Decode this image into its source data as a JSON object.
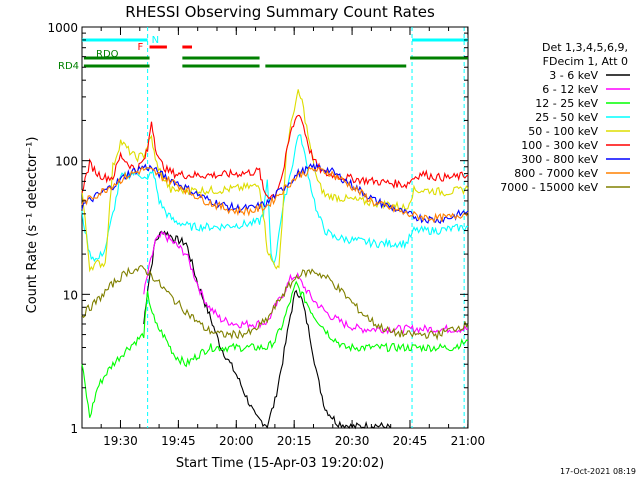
{
  "chart_data": {
    "type": "line",
    "title": "RHESSI Observing Summary Count Rates",
    "xlabel": "Start Time (15-Apr-03 19:20:02)",
    "ylabel": "Count Rate (s⁻¹ detector⁻¹)",
    "yscale": "log",
    "ylim": [
      1,
      1000
    ],
    "xlim_minutes": [
      0,
      100
    ],
    "x_tick_labels": [
      "19:30",
      "19:45",
      "20:00",
      "20:15",
      "20:30",
      "20:45",
      "21:00"
    ],
    "x_tick_minutes": [
      9.97,
      24.97,
      39.97,
      54.97,
      69.97,
      84.97,
      99.97
    ],
    "y_tick_labels": [
      "1",
      "10",
      "100",
      "1000"
    ],
    "y_tick_values": [
      1,
      10,
      100,
      1000
    ],
    "timestamp": "17-Oct-2021 08:19",
    "legend": {
      "header": [
        "Det 1,3,4,5,6,9,",
        "FDecim 1, Att 0"
      ],
      "position": "right"
    },
    "flag_bars": [
      {
        "name": "N",
        "color": "#00ffff",
        "segments": [
          [
            0,
            17
          ],
          [
            85.5,
            100
          ]
        ]
      },
      {
        "name": "F",
        "color": "#ff0000",
        "segments": [
          [
            17.5,
            22
          ],
          [
            26,
            28.5
          ]
        ]
      },
      {
        "name": "RDO",
        "color": "#008000",
        "segments": [
          [
            0.5,
            17.5
          ],
          [
            26,
            46
          ],
          [
            85,
            100
          ]
        ]
      },
      {
        "name": "RD4",
        "color": "#008000",
        "segments": [
          [
            0.5,
            17.5
          ],
          [
            26,
            46
          ],
          [
            47.5,
            84
          ]
        ]
      }
    ],
    "night_markers_minutes": [
      17,
      85.5,
      99
    ],
    "series": [
      {
        "name": "3 - 6 keV",
        "color": "#000000",
        "points": [
          [
            16,
            6
          ],
          [
            17,
            11
          ],
          [
            19,
            25
          ],
          [
            21,
            30
          ],
          [
            24,
            26
          ],
          [
            27,
            24
          ],
          [
            30,
            12
          ],
          [
            33,
            7
          ],
          [
            36,
            4
          ],
          [
            40,
            2.5
          ],
          [
            45,
            1.2
          ],
          [
            48,
            1.05
          ],
          [
            50,
            1.6
          ],
          [
            52,
            3.2
          ],
          [
            54,
            7
          ],
          [
            55.5,
            11
          ],
          [
            57,
            9
          ],
          [
            59,
            5
          ],
          [
            61,
            2.4
          ],
          [
            63,
            1.4
          ],
          [
            66,
            1.1
          ],
          [
            70,
            1.02
          ],
          [
            76,
            1.05
          ],
          [
            80,
            1.0
          ]
        ]
      },
      {
        "name": "6 - 12 keV",
        "color": "#ff00ff",
        "points": [
          [
            16,
            10
          ],
          [
            17,
            14
          ],
          [
            19,
            25
          ],
          [
            21,
            28
          ],
          [
            24,
            24
          ],
          [
            27,
            20
          ],
          [
            29,
            14
          ],
          [
            31,
            10
          ],
          [
            33,
            8
          ],
          [
            36,
            6.5
          ],
          [
            40,
            6
          ],
          [
            45,
            6
          ],
          [
            48,
            6.2
          ],
          [
            50,
            8
          ],
          [
            52,
            10
          ],
          [
            54,
            13
          ],
          [
            55.5,
            14
          ],
          [
            57,
            12
          ],
          [
            60,
            9
          ],
          [
            64,
            7
          ],
          [
            68,
            6
          ],
          [
            72,
            5.5
          ],
          [
            78,
            5.5
          ],
          [
            84,
            5.5
          ],
          [
            90,
            5.5
          ],
          [
            96,
            5.5
          ],
          [
            100,
            5.5
          ]
        ]
      },
      {
        "name": "12 - 25 keV",
        "color": "#00ff00",
        "points": [
          [
            0,
            3
          ],
          [
            2,
            1.2
          ],
          [
            4,
            2
          ],
          [
            6,
            2.5
          ],
          [
            8,
            3
          ],
          [
            12,
            4
          ],
          [
            16,
            5
          ],
          [
            17,
            10
          ],
          [
            19,
            6
          ],
          [
            21,
            5
          ],
          [
            24,
            3.5
          ],
          [
            27,
            3
          ],
          [
            30,
            3.5
          ],
          [
            33,
            4
          ],
          [
            36,
            4
          ],
          [
            40,
            4
          ],
          [
            44,
            4
          ],
          [
            48,
            4
          ],
          [
            50,
            4.5
          ],
          [
            52,
            6
          ],
          [
            54,
            9
          ],
          [
            55.5,
            12
          ],
          [
            57,
            10
          ],
          [
            60,
            7
          ],
          [
            64,
            5
          ],
          [
            68,
            4
          ],
          [
            72,
            4
          ],
          [
            76,
            4
          ],
          [
            80,
            4
          ],
          [
            84,
            4
          ],
          [
            88,
            4
          ],
          [
            92,
            4
          ],
          [
            96,
            4
          ],
          [
            100,
            4.5
          ]
        ]
      },
      {
        "name": "25 - 50 keV",
        "color": "#00ffff",
        "points": [
          [
            0,
            40
          ],
          [
            2,
            20
          ],
          [
            4,
            18
          ],
          [
            6,
            22
          ],
          [
            8,
            40
          ],
          [
            10,
            75
          ],
          [
            13,
            80
          ],
          [
            15,
            80
          ],
          [
            17,
            70
          ],
          [
            18,
            85
          ],
          [
            19,
            70
          ],
          [
            20,
            50
          ],
          [
            22,
            40
          ],
          [
            24,
            35
          ],
          [
            26,
            34
          ],
          [
            28,
            32
          ],
          [
            30,
            32
          ],
          [
            35,
            32
          ],
          [
            40,
            33
          ],
          [
            44,
            34
          ],
          [
            46,
            35
          ],
          [
            47,
            40
          ],
          [
            48,
            70
          ],
          [
            49,
            20
          ],
          [
            50,
            17
          ],
          [
            51,
            30
          ],
          [
            53,
            60
          ],
          [
            55,
            110
          ],
          [
            56,
            160
          ],
          [
            57,
            140
          ],
          [
            59,
            70
          ],
          [
            61,
            40
          ],
          [
            63,
            30
          ],
          [
            65,
            27
          ],
          [
            68,
            26
          ],
          [
            72,
            25
          ],
          [
            76,
            24
          ],
          [
            80,
            24
          ],
          [
            84,
            24
          ],
          [
            86,
            30
          ],
          [
            88,
            30
          ],
          [
            92,
            30
          ],
          [
            96,
            31
          ],
          [
            100,
            32
          ]
        ]
      },
      {
        "name": "50 - 100 keV",
        "color": "#dddd00",
        "points": [
          [
            0,
            60
          ],
          [
            2,
            16
          ],
          [
            4,
            17
          ],
          [
            6,
            17
          ],
          [
            8,
            90
          ],
          [
            10,
            140
          ],
          [
            12,
            120
          ],
          [
            14,
            105
          ],
          [
            16,
            110
          ],
          [
            17,
            130
          ],
          [
            18,
            150
          ],
          [
            19,
            100
          ],
          [
            21,
            75
          ],
          [
            23,
            60
          ],
          [
            25,
            60
          ],
          [
            30,
            60
          ],
          [
            35,
            60
          ],
          [
            40,
            62
          ],
          [
            44,
            64
          ],
          [
            46,
            65
          ],
          [
            47,
            40
          ],
          [
            48,
            22
          ],
          [
            49,
            18
          ],
          [
            50,
            17
          ],
          [
            51,
            15
          ],
          [
            53,
            120
          ],
          [
            55,
            250
          ],
          [
            56,
            320
          ],
          [
            57,
            280
          ],
          [
            59,
            130
          ],
          [
            61,
            70
          ],
          [
            63,
            55
          ],
          [
            68,
            52
          ],
          [
            72,
            50
          ],
          [
            76,
            48
          ],
          [
            80,
            47
          ],
          [
            84,
            44
          ],
          [
            86,
            60
          ],
          [
            90,
            60
          ],
          [
            94,
            58
          ],
          [
            98,
            60
          ],
          [
            100,
            62
          ]
        ]
      },
      {
        "name": "100 - 300 keV",
        "color": "#ff0000",
        "points": [
          [
            0,
            60
          ],
          [
            2,
            95
          ],
          [
            4,
            80
          ],
          [
            6,
            75
          ],
          [
            8,
            75
          ],
          [
            10,
            110
          ],
          [
            12,
            95
          ],
          [
            14,
            85
          ],
          [
            16,
            100
          ],
          [
            17,
            120
          ],
          [
            18,
            200
          ],
          [
            19,
            130
          ],
          [
            20,
            100
          ],
          [
            22,
            85
          ],
          [
            24,
            80
          ],
          [
            27,
            78
          ],
          [
            30,
            78
          ],
          [
            35,
            78
          ],
          [
            40,
            80
          ],
          [
            44,
            82
          ],
          [
            46,
            84
          ],
          [
            47,
            60
          ],
          [
            48,
            55
          ],
          [
            50,
            55
          ],
          [
            52,
            80
          ],
          [
            54,
            160
          ],
          [
            56,
            230
          ],
          [
            57,
            200
          ],
          [
            59,
            120
          ],
          [
            61,
            90
          ],
          [
            63,
            80
          ],
          [
            68,
            75
          ],
          [
            72,
            72
          ],
          [
            76,
            70
          ],
          [
            80,
            68
          ],
          [
            84,
            66
          ],
          [
            86,
            75
          ],
          [
            88,
            80
          ],
          [
            92,
            75
          ],
          [
            96,
            75
          ],
          [
            100,
            78
          ]
        ]
      },
      {
        "name": "300 - 800 keV",
        "color": "#0000ff",
        "points": [
          [
            0,
            46
          ],
          [
            4,
            55
          ],
          [
            8,
            65
          ],
          [
            12,
            80
          ],
          [
            16,
            90
          ],
          [
            18,
            88
          ],
          [
            20,
            80
          ],
          [
            24,
            70
          ],
          [
            28,
            60
          ],
          [
            32,
            52
          ],
          [
            36,
            47
          ],
          [
            40,
            44
          ],
          [
            44,
            44
          ],
          [
            48,
            48
          ],
          [
            52,
            62
          ],
          [
            56,
            80
          ],
          [
            60,
            90
          ],
          [
            64,
            85
          ],
          [
            68,
            72
          ],
          [
            72,
            60
          ],
          [
            76,
            50
          ],
          [
            80,
            45
          ],
          [
            84,
            40
          ],
          [
            88,
            37
          ],
          [
            92,
            36
          ],
          [
            96,
            38
          ],
          [
            100,
            42
          ]
        ]
      },
      {
        "name": "800 - 7000 keV",
        "color": "#ff8000",
        "points": [
          [
            0,
            48
          ],
          [
            4,
            56
          ],
          [
            8,
            66
          ],
          [
            12,
            78
          ],
          [
            16,
            86
          ],
          [
            18,
            84
          ],
          [
            20,
            78
          ],
          [
            24,
            68
          ],
          [
            28,
            58
          ],
          [
            32,
            50
          ],
          [
            36,
            45
          ],
          [
            40,
            42
          ],
          [
            44,
            42
          ],
          [
            48,
            46
          ],
          [
            52,
            60
          ],
          [
            56,
            78
          ],
          [
            60,
            86
          ],
          [
            64,
            82
          ],
          [
            68,
            70
          ],
          [
            72,
            58
          ],
          [
            76,
            48
          ],
          [
            80,
            44
          ],
          [
            84,
            40
          ],
          [
            88,
            38
          ],
          [
            92,
            37
          ],
          [
            96,
            38
          ],
          [
            100,
            41
          ]
        ]
      },
      {
        "name": "7000 - 15000 keV",
        "color": "#808000",
        "points": [
          [
            0,
            7
          ],
          [
            4,
            9
          ],
          [
            8,
            12
          ],
          [
            12,
            15
          ],
          [
            16,
            15.5
          ],
          [
            18,
            14
          ],
          [
            20,
            12
          ],
          [
            24,
            9
          ],
          [
            28,
            7
          ],
          [
            32,
            5.5
          ],
          [
            36,
            5
          ],
          [
            40,
            5
          ],
          [
            44,
            5.2
          ],
          [
            48,
            6.5
          ],
          [
            52,
            10
          ],
          [
            56,
            14
          ],
          [
            60,
            15
          ],
          [
            64,
            13
          ],
          [
            68,
            10
          ],
          [
            72,
            7.5
          ],
          [
            76,
            6
          ],
          [
            80,
            5.2
          ],
          [
            84,
            5
          ],
          [
            88,
            5
          ],
          [
            92,
            5
          ],
          [
            96,
            5.5
          ],
          [
            100,
            6
          ]
        ]
      }
    ]
  }
}
